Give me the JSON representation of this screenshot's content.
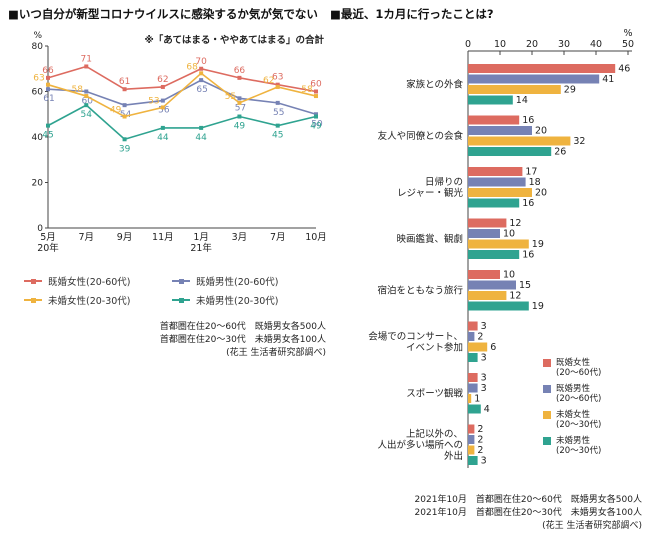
{
  "chart_data": [
    {
      "type": "line",
      "title": "■いつ自分が新型コロナウイルスに感染するか気が気でない",
      "subtitle": "※「あてはまる・ややあてはまる」の合計",
      "ylabel": "%",
      "ylim": [
        0,
        80
      ],
      "yticks": [
        0,
        20,
        40,
        60,
        80
      ],
      "grid": false,
      "legend_position": "bottom",
      "categories": [
        "5月",
        "7月",
        "9月",
        "11月",
        "1月",
        "3月",
        "7月",
        "10月"
      ],
      "category_year_labels": [
        "20年",
        "",
        "",
        "",
        "21年",
        "",
        "",
        ""
      ],
      "series": [
        {
          "name": "既婚女性(20-60代)",
          "color": "#dd6b60",
          "values": [
            66,
            71,
            61,
            62,
            70,
            66,
            63,
            60
          ]
        },
        {
          "name": "既婚男性(20-60代)",
          "color": "#7682b4",
          "values": [
            61,
            60,
            54,
            56,
            65,
            57,
            55,
            50
          ]
        },
        {
          "name": "未婚女性(20-30代)",
          "color": "#efb33f",
          "values": [
            63,
            58,
            49,
            53,
            68,
            55,
            62,
            58
          ]
        },
        {
          "name": "未婚男性(20-30代)",
          "color": "#2fa390",
          "values": [
            45,
            54,
            39,
            44,
            44,
            49,
            45,
            49
          ]
        }
      ],
      "source_lines": [
        "首都圏在住20～60代　既婚男女各500人",
        "首都圏在住20～30代　未婚男女各100人",
        "(花王 生活者研究部調べ)"
      ]
    },
    {
      "type": "bar",
      "orientation": "horizontal",
      "title": "■最近、1カ月に行ったことは?",
      "xlabel": "%",
      "xlim": [
        0,
        50
      ],
      "xticks": [
        0,
        10,
        20,
        30,
        40,
        50
      ],
      "grid": false,
      "legend_position": "right-overlay",
      "categories": [
        "家族との外食",
        "友人や同僚との会食",
        "日帰りの\nレジャー・観光",
        "映画鑑賞、観劇",
        "宿泊をともなう旅行",
        "会場でのコンサート、\nイベント参加",
        "スポーツ観戦",
        "上記以外の、\n人出が多い場所への\n外出"
      ],
      "series": [
        {
          "name": "既婚女性",
          "name_note": "(20～60代)",
          "color": "#dd6b60",
          "values": [
            46,
            16,
            17,
            12,
            10,
            3,
            3,
            2
          ]
        },
        {
          "name": "既婚男性",
          "name_note": "(20～60代)",
          "color": "#7682b4",
          "values": [
            41,
            20,
            18,
            10,
            15,
            2,
            3,
            2
          ]
        },
        {
          "name": "未婚女性",
          "name_note": "(20～30代)",
          "color": "#efb33f",
          "values": [
            29,
            32,
            20,
            19,
            12,
            6,
            1,
            2
          ]
        },
        {
          "name": "未婚男性",
          "name_note": "(20～30代)",
          "color": "#2fa390",
          "values": [
            14,
            26,
            16,
            16,
            19,
            3,
            4,
            3
          ]
        }
      ],
      "source_lines": [
        "2021年10月　首都圏在住20～60代　既婚男女各500人",
        "2021年10月　首都圏在住20～30代　未婚男女各100人",
        "(花王 生活者研究部調べ)"
      ]
    }
  ]
}
